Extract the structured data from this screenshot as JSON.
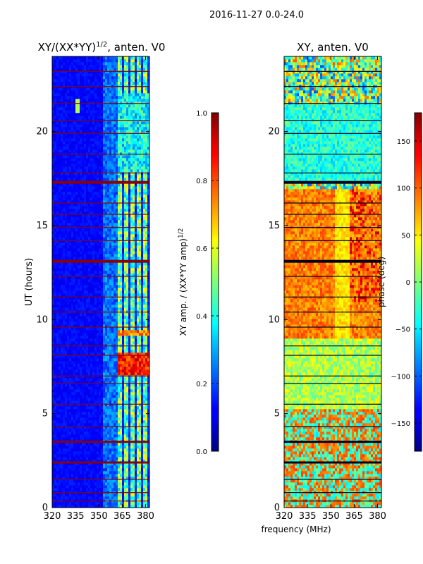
{
  "figure": {
    "suptitle": "2016-11-27 0.0-24.0",
    "xlabel": "frequency (MHz)"
  },
  "chart_data": [
    {
      "type": "heatmap",
      "title_main": "XY/(XX*YY)",
      "title_sup": "1/2",
      "title_rest": ", anten. V0",
      "ylabel": "UT (hours)",
      "xlim": [
        320,
        382.5
      ],
      "ylim": [
        0,
        24
      ],
      "xticks": [
        "320",
        "335",
        "350",
        "365",
        "380"
      ],
      "xtick_values": [
        320,
        335,
        350,
        365,
        380
      ],
      "yticks": [
        "0",
        "5",
        "10",
        "15",
        "20"
      ],
      "ytick_values": [
        0,
        5,
        10,
        15,
        20
      ],
      "colorbar": {
        "label_main": "XY amp. / (XX*YY amp)",
        "label_sup": "1/2",
        "range": [
          0.0,
          1.0
        ],
        "ticks": [
          "0.0",
          "0.2",
          "0.4",
          "0.6",
          "0.8",
          "1.0"
        ],
        "tick_values": [
          0.0,
          0.2,
          0.4,
          0.6,
          0.8,
          1.0
        ]
      }
    },
    {
      "type": "heatmap",
      "title_main": "XY, anten. V0",
      "xlim": [
        320,
        382.5
      ],
      "ylim": [
        0,
        24
      ],
      "xticks": [
        "320",
        "335",
        "350",
        "365",
        "380"
      ],
      "xtick_values": [
        320,
        335,
        350,
        365,
        380
      ],
      "yticks": [
        "0",
        "5",
        "10",
        "15",
        "20"
      ],
      "ytick_values": [
        0,
        5,
        10,
        15,
        20
      ],
      "colorbar": {
        "label_main": "phase (deg)",
        "range": [
          -180,
          180
        ],
        "ticks": [
          "−150",
          "−100",
          "−50",
          "0",
          "50",
          "100",
          "150"
        ],
        "tick_values": [
          -150,
          -100,
          -50,
          0,
          50,
          100,
          150
        ]
      }
    }
  ]
}
